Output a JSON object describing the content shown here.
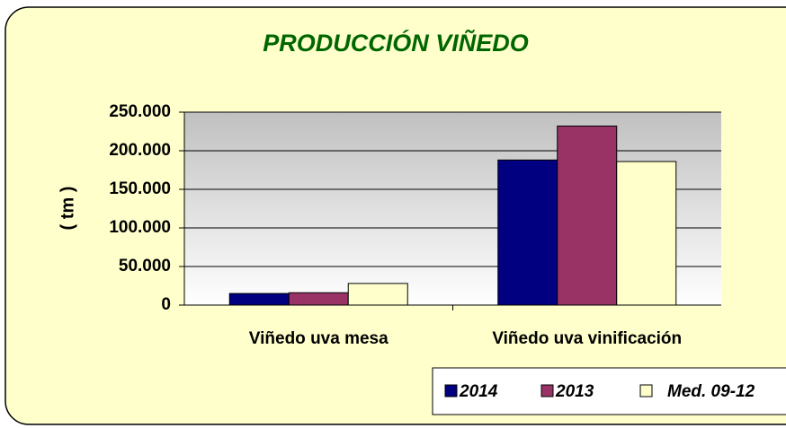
{
  "chart_data": {
    "type": "bar",
    "title": "PRODUCCIÓN VIÑEDO",
    "y_label": "( tm )",
    "categories": [
      "Viñedo uva mesa",
      "Viñedo uva vinificación"
    ],
    "series": [
      {
        "name": "2014",
        "color": "#000080",
        "values": [
          15000,
          188000
        ]
      },
      {
        "name": "2013",
        "color": "#993366",
        "values": [
          16000,
          232000
        ]
      },
      {
        "name": "Med. 09-12",
        "color": "#FFFFCC",
        "values": [
          28000,
          186000
        ]
      }
    ],
    "ylim": [
      0,
      250000
    ],
    "yticks": [
      0,
      {
        "value": 50000,
        "label": "50.000"
      },
      {
        "value": 100000,
        "label": "100.000"
      },
      {
        "value": 150000,
        "label": "150.000"
      },
      {
        "value": 200000,
        "label": "200.000"
      },
      {
        "value": 250000,
        "label": "250.000"
      }
    ],
    "grid": true,
    "legend": "bottom-right"
  }
}
